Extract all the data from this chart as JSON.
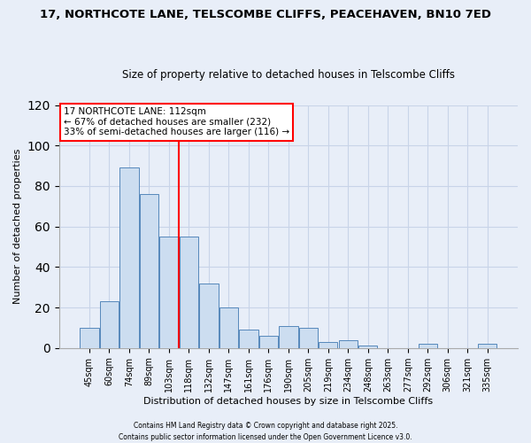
{
  "title": "17, NORTHCOTE LANE, TELSCOMBE CLIFFS, PEACEHAVEN, BN10 7ED",
  "subtitle": "Size of property relative to detached houses in Telscombe Cliffs",
  "xlabel": "Distribution of detached houses by size in Telscombe Cliffs",
  "ylabel": "Number of detached properties",
  "bar_color": "#ccddf0",
  "bar_edge_color": "#5588bb",
  "background_color": "#e8eef8",
  "grid_color": "#c8d4e8",
  "categories": [
    "45sqm",
    "60sqm",
    "74sqm",
    "89sqm",
    "103sqm",
    "118sqm",
    "132sqm",
    "147sqm",
    "161sqm",
    "176sqm",
    "190sqm",
    "205sqm",
    "219sqm",
    "234sqm",
    "248sqm",
    "263sqm",
    "277sqm",
    "292sqm",
    "306sqm",
    "321sqm",
    "335sqm"
  ],
  "values": [
    10,
    23,
    89,
    76,
    55,
    55,
    32,
    20,
    9,
    6,
    11,
    10,
    3,
    4,
    1,
    0,
    0,
    2,
    0,
    0,
    2
  ],
  "vline_x": 4.5,
  "vline_color": "red",
  "ylim": [
    0,
    120
  ],
  "yticks": [
    0,
    20,
    40,
    60,
    80,
    100,
    120
  ],
  "annotation_title": "17 NORTHCOTE LANE: 112sqm",
  "annotation_line1": "← 67% of detached houses are smaller (232)",
  "annotation_line2": "33% of semi-detached houses are larger (116) →",
  "footer1": "Contains HM Land Registry data © Crown copyright and database right 2025.",
  "footer2": "Contains public sector information licensed under the Open Government Licence v3.0."
}
